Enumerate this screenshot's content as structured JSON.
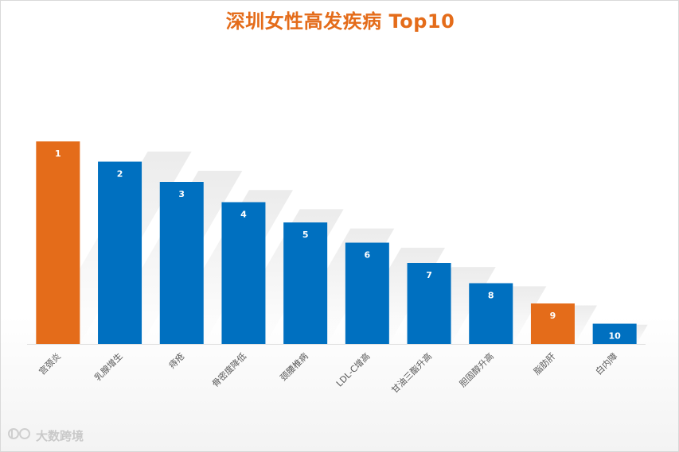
{
  "chart_data": {
    "type": "bar",
    "title": "深圳女性高发疾病 Top10",
    "xlabel": "",
    "ylabel": "",
    "categories": [
      "宫颈炎",
      "乳腺增生",
      "痔疮",
      "骨密度降低",
      "颈腰椎病",
      "LDL-C增高",
      "甘油三酯升高",
      "胆固醇升高",
      "脂肪肝",
      "白内障"
    ],
    "values": [
      10,
      9,
      8,
      7,
      6,
      5,
      4,
      3,
      2,
      1
    ],
    "data_labels": [
      "1",
      "2",
      "3",
      "4",
      "5",
      "6",
      "7",
      "8",
      "9",
      "10"
    ],
    "highlight": [
      true,
      false,
      false,
      false,
      false,
      false,
      false,
      false,
      true,
      false
    ],
    "ylim": [
      0,
      10
    ],
    "grid": false,
    "legend": "none",
    "colors": {
      "primary": "#0070c0",
      "highlight": "#e46c1a",
      "title": "#e46c1a",
      "axis_label": "#595959",
      "data_label": "#ffffff"
    }
  },
  "watermark": {
    "text": "大数跨境",
    "icon": "dashuju-logo-icon"
  }
}
